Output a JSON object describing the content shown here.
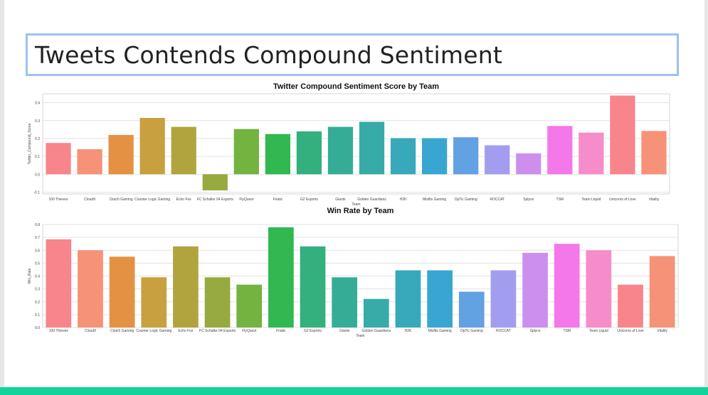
{
  "slide": {
    "title": "Tweets Contends Compound Sentiment"
  },
  "colors": {
    "palette": [
      "#f7858b",
      "#f59277",
      "#e49144",
      "#c8a03f",
      "#b1a43f",
      "#97aa3f",
      "#73b33f",
      "#32b851",
      "#34b07f",
      "#35ad96",
      "#36aba8",
      "#37a9bb",
      "#39a6d1",
      "#62a1e2",
      "#a39df0",
      "#cc8fee",
      "#f478ea",
      "#f68cc9"
    ],
    "accent_bar": "#12d39a",
    "title_border": "#9cc2f0"
  },
  "chart_data": [
    {
      "type": "bar",
      "title": "Twitter Compound Sentiment Score by Team",
      "xlabel": "Team",
      "ylabel": "Twitter_Compound_Score",
      "ylim": [
        -0.11,
        0.45
      ],
      "yticks": [
        -0.1,
        0.0,
        0.1,
        0.2,
        0.3,
        0.4
      ],
      "yticklabels": [
        "-0.1",
        "0.0",
        "0.1",
        "0.2",
        "0.3",
        "0.4"
      ],
      "grid": true,
      "categories": [
        "100 Thieves",
        "Cloud9",
        "Clutch Gaming",
        "Counter Logic Gaming",
        "Echo Fox",
        "FC Schalke 04 Esports",
        "FlyQuest",
        "Fnatic",
        "G2 Esports",
        "Giants",
        "Golden Guardians",
        "H2K",
        "Misfits Gaming",
        "OpTic Gaming",
        "ROCCAT",
        "Splyce",
        "TSM",
        "Team Liquid",
        "Unicorns of Love",
        "Vitality"
      ],
      "values": [
        0.175,
        0.14,
        0.22,
        0.315,
        0.265,
        -0.09,
        0.253,
        0.225,
        0.24,
        0.265,
        0.293,
        0.202,
        0.202,
        0.207,
        0.162,
        0.117,
        0.27,
        0.233,
        0.44,
        0.242
      ]
    },
    {
      "type": "bar",
      "title": "Win Rate by Team",
      "xlabel": "Team",
      "ylabel": "Win_Rate",
      "ylim": [
        0.0,
        0.8
      ],
      "yticks": [
        0.0,
        0.1,
        0.2,
        0.3,
        0.4,
        0.5,
        0.6,
        0.7,
        0.8
      ],
      "yticklabels": [
        "0.0",
        "0.1",
        "0.2",
        "0.3",
        "0.4",
        "0.5",
        "0.6",
        "0.7",
        "0.8"
      ],
      "grid": true,
      "categories": [
        "100 Thieves",
        "Cloud9",
        "Clutch Gaming",
        "Counter Logic Gaming",
        "Echo Fox",
        "FC Schalke 04 Esports",
        "FlyQuest",
        "Fnatic",
        "G2 Esports",
        "Giants",
        "Golden Guardians",
        "H2K",
        "Misfits Gaming",
        "OpTic Gaming",
        "ROCCAT",
        "Splyce",
        "TSM",
        "Team Liquid",
        "Unicorns of Love",
        "Vitality"
      ],
      "values": [
        0.685,
        0.6,
        0.55,
        0.39,
        0.63,
        0.39,
        0.333,
        0.778,
        0.63,
        0.39,
        0.222,
        0.444,
        0.444,
        0.278,
        0.444,
        0.58,
        0.65,
        0.6,
        0.333,
        0.555
      ]
    }
  ]
}
